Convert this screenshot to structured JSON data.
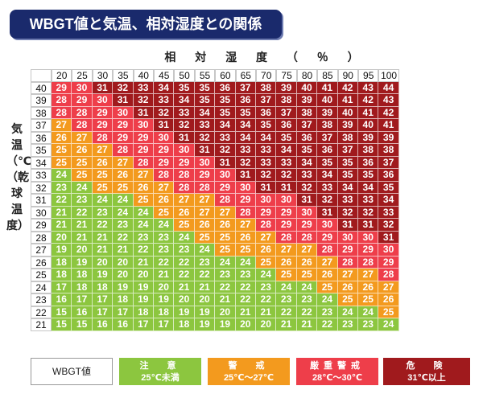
{
  "title": "WBGT値と気温、相対湿度との関係",
  "chart_data": {
    "type": "table",
    "title": "WBGT値と気温、相対湿度との関係",
    "xlabel": "相 対 湿 度 （ ％ ）",
    "ylabel": "気温（℃）（乾球温度）",
    "humidity": [
      20,
      25,
      30,
      35,
      40,
      45,
      50,
      55,
      60,
      65,
      70,
      75,
      80,
      85,
      90,
      95,
      100
    ],
    "temperature": [
      40,
      39,
      38,
      37,
      36,
      35,
      34,
      33,
      32,
      31,
      30,
      29,
      28,
      27,
      26,
      25,
      24,
      23,
      22,
      21
    ],
    "values": [
      [
        29,
        30,
        31,
        32,
        33,
        34,
        35,
        35,
        36,
        37,
        38,
        39,
        40,
        41,
        42,
        43,
        44
      ],
      [
        28,
        29,
        30,
        31,
        32,
        33,
        34,
        35,
        35,
        36,
        37,
        38,
        39,
        40,
        41,
        42,
        43
      ],
      [
        28,
        28,
        29,
        30,
        31,
        32,
        33,
        34,
        35,
        35,
        36,
        37,
        38,
        39,
        40,
        41,
        42
      ],
      [
        27,
        28,
        29,
        29,
        30,
        31,
        32,
        33,
        34,
        34,
        35,
        36,
        37,
        38,
        39,
        40,
        41
      ],
      [
        26,
        27,
        28,
        29,
        29,
        30,
        31,
        32,
        33,
        34,
        34,
        35,
        36,
        37,
        38,
        39,
        39
      ],
      [
        25,
        26,
        27,
        28,
        29,
        29,
        30,
        31,
        32,
        33,
        33,
        34,
        35,
        36,
        37,
        38,
        38
      ],
      [
        25,
        25,
        26,
        27,
        28,
        29,
        29,
        30,
        31,
        32,
        33,
        33,
        34,
        35,
        35,
        36,
        37
      ],
      [
        24,
        25,
        25,
        26,
        27,
        28,
        28,
        29,
        30,
        31,
        32,
        32,
        33,
        34,
        35,
        35,
        36
      ],
      [
        23,
        24,
        25,
        25,
        26,
        27,
        28,
        28,
        29,
        30,
        31,
        31,
        32,
        33,
        34,
        34,
        35
      ],
      [
        22,
        23,
        24,
        24,
        25,
        26,
        27,
        27,
        28,
        29,
        30,
        30,
        31,
        32,
        33,
        33,
        34
      ],
      [
        21,
        22,
        23,
        24,
        24,
        25,
        26,
        27,
        27,
        28,
        29,
        29,
        30,
        31,
        32,
        32,
        33
      ],
      [
        21,
        21,
        22,
        23,
        24,
        24,
        25,
        26,
        26,
        27,
        28,
        29,
        29,
        30,
        31,
        31,
        32
      ],
      [
        20,
        21,
        21,
        22,
        23,
        23,
        24,
        25,
        25,
        26,
        27,
        28,
        28,
        29,
        30,
        30,
        31
      ],
      [
        19,
        20,
        21,
        21,
        22,
        23,
        23,
        24,
        25,
        25,
        26,
        27,
        27,
        28,
        29,
        29,
        30
      ],
      [
        18,
        19,
        20,
        20,
        21,
        22,
        22,
        23,
        24,
        24,
        25,
        26,
        26,
        27,
        28,
        28,
        29
      ],
      [
        18,
        18,
        19,
        20,
        20,
        21,
        22,
        22,
        23,
        23,
        24,
        25,
        25,
        26,
        27,
        27,
        28
      ],
      [
        17,
        18,
        18,
        19,
        19,
        20,
        21,
        21,
        22,
        22,
        23,
        24,
        24,
        25,
        26,
        26,
        27
      ],
      [
        16,
        17,
        17,
        18,
        19,
        19,
        20,
        20,
        21,
        22,
        22,
        23,
        23,
        24,
        25,
        25,
        26
      ],
      [
        15,
        16,
        17,
        17,
        18,
        18,
        19,
        19,
        20,
        21,
        21,
        22,
        22,
        23,
        24,
        24,
        25
      ],
      [
        15,
        15,
        16,
        16,
        17,
        17,
        18,
        19,
        19,
        20,
        20,
        21,
        21,
        22,
        23,
        23,
        24
      ]
    ],
    "legend": {
      "key_label": "WBGT値",
      "bands": [
        {
          "name": "注　意",
          "range": "25℃未満",
          "color": "#8cc63f",
          "min": 0,
          "max": 24
        },
        {
          "name": "警　戒",
          "range": "25℃〜27℃",
          "color": "#f39a1e",
          "min": 25,
          "max": 27
        },
        {
          "name": "厳重警戒",
          "range": "28℃〜30℃",
          "color": "#ee3e4a",
          "min": 28,
          "max": 30
        },
        {
          "name": "危　険",
          "range": "31℃以上",
          "color": "#a01a1d",
          "min": 31,
          "max": 99
        }
      ]
    }
  }
}
